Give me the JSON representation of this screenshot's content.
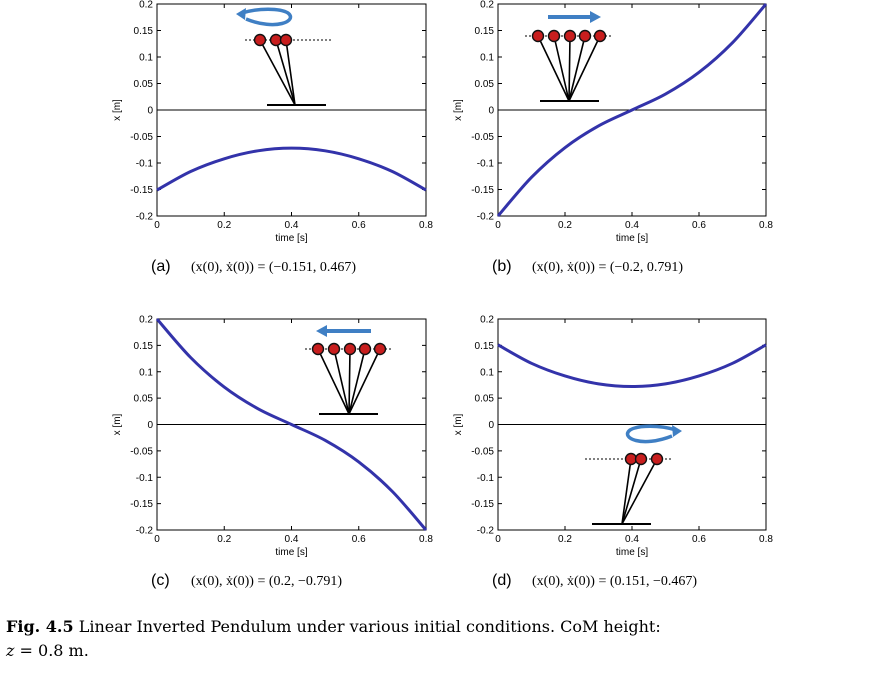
{
  "caption": {
    "label": "Fig. 4.5",
    "text": " Linear Inverted Pendulum under various initial conditions. CoM height:",
    "line2_var": "z",
    "line2_rest": " = 0.8 m."
  },
  "chart_data": [
    {
      "type": "line",
      "id": "a",
      "panel_label": "(a)",
      "formula": "(x(0), ẋ(0)) = (−0.151, 0.467)",
      "xlabel": "time [s]",
      "ylabel": "x [m]",
      "xlim": [
        0,
        0.8
      ],
      "ylim": [
        -0.2,
        0.2
      ],
      "xticks": [
        "0",
        "0.2",
        "0.4",
        "0.6",
        "0.8"
      ],
      "yticks": [
        "-0.2",
        "-0.15",
        "-0.1",
        "-0.05",
        "0",
        "0.05",
        "0.1",
        "0.15",
        "0.2"
      ],
      "series": [
        {
          "x": [
            0,
            0.1,
            0.2,
            0.3,
            0.4,
            0.5,
            0.6,
            0.7,
            0.8
          ],
          "y": [
            -0.151,
            -0.116,
            -0.092,
            -0.077,
            -0.072,
            -0.077,
            -0.092,
            -0.116,
            -0.151
          ],
          "color": "#3333aa"
        }
      ],
      "inset": {
        "arrow_color": "#3f7fc4",
        "arrow": "rotate-left"
      }
    },
    {
      "type": "line",
      "id": "b",
      "panel_label": "(b)",
      "formula": "(x(0), ẋ(0)) = (−0.2, 0.791)",
      "xlabel": "time [s]",
      "ylabel": "x [m]",
      "xlim": [
        0,
        0.8
      ],
      "ylim": [
        -0.2,
        0.2
      ],
      "xticks": [
        "0",
        "0.2",
        "0.4",
        "0.6",
        "0.8"
      ],
      "yticks": [
        "-0.2",
        "-0.15",
        "-0.1",
        "-0.05",
        "0",
        "0.05",
        "0.1",
        "0.15",
        "0.2"
      ],
      "series": [
        {
          "x": [
            0,
            0.1,
            0.2,
            0.3,
            0.4,
            0.5,
            0.6,
            0.7,
            0.8
          ],
          "y": [
            -0.2,
            -0.127,
            -0.071,
            -0.03,
            0.0,
            0.03,
            0.071,
            0.127,
            0.2
          ],
          "color": "#3333aa"
        }
      ],
      "inset": {
        "arrow_color": "#3f7fc4",
        "arrow": "right"
      }
    },
    {
      "type": "line",
      "id": "c",
      "panel_label": "(c)",
      "formula": "(x(0), ẋ(0)) = (0.2, −0.791)",
      "xlabel": "time [s]",
      "ylabel": "x [m]",
      "xlim": [
        0,
        0.8
      ],
      "ylim": [
        -0.2,
        0.2
      ],
      "xticks": [
        "0",
        "0.2",
        "0.4",
        "0.6",
        "0.8"
      ],
      "yticks": [
        "-0.2",
        "-0.15",
        "-0.1",
        "-0.05",
        "0",
        "0.05",
        "0.1",
        "0.15",
        "0.2"
      ],
      "series": [
        {
          "x": [
            0,
            0.1,
            0.2,
            0.3,
            0.4,
            0.5,
            0.6,
            0.7,
            0.8
          ],
          "y": [
            0.2,
            0.127,
            0.071,
            0.03,
            0.0,
            -0.03,
            -0.071,
            -0.127,
            -0.2
          ],
          "color": "#3333aa"
        }
      ],
      "inset": {
        "arrow_color": "#3f7fc4",
        "arrow": "left"
      }
    },
    {
      "type": "line",
      "id": "d",
      "panel_label": "(d)",
      "formula": "(x(0), ẋ(0)) = (0.151, −0.467)",
      "xlabel": "time [s]",
      "ylabel": "x [m]",
      "xlim": [
        0,
        0.8
      ],
      "ylim": [
        -0.2,
        0.2
      ],
      "xticks": [
        "0",
        "0.2",
        "0.4",
        "0.6",
        "0.8"
      ],
      "yticks": [
        "-0.2",
        "-0.15",
        "-0.1",
        "-0.05",
        "0",
        "0.05",
        "0.1",
        "0.15",
        "0.2"
      ],
      "series": [
        {
          "x": [
            0,
            0.1,
            0.2,
            0.3,
            0.4,
            0.5,
            0.6,
            0.7,
            0.8
          ],
          "y": [
            0.151,
            0.116,
            0.092,
            0.077,
            0.072,
            0.077,
            0.092,
            0.116,
            0.151
          ],
          "color": "#3333aa"
        }
      ],
      "inset": {
        "arrow_color": "#3f7fc4",
        "arrow": "rotate-right"
      }
    }
  ]
}
